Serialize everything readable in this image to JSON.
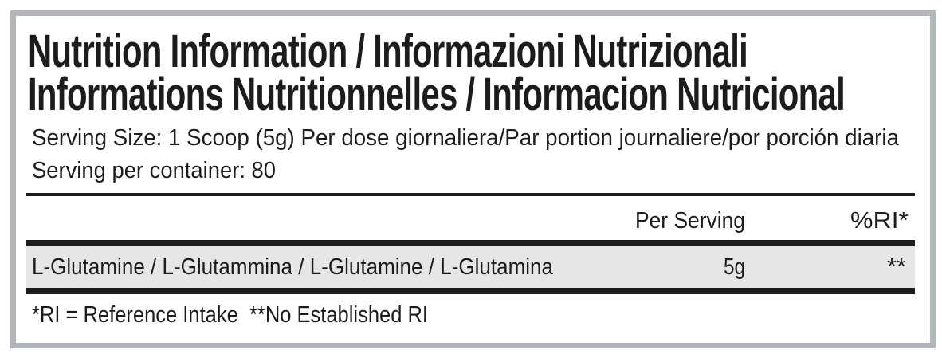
{
  "title": {
    "line1": "Nutrition Information / Informazioni Nutrizionali",
    "line2": "Informations Nutritionnelles / Informacion Nutricional"
  },
  "serving": {
    "size": "Serving Size: 1 Scoop (5g) Per dose giornaliera/Par portion journaliere/por porción diaria",
    "per_container": "Serving per container: 80"
  },
  "table": {
    "headers": [
      "",
      "Per Serving",
      "%RI*"
    ],
    "rows": [
      {
        "name": "L-Glutamine / L-Glutammina / L-Glutamine / L-Glutamina",
        "per_serving": "5g",
        "ri": "**"
      }
    ]
  },
  "footnote": "*RI = Reference Intake  **No Established RI",
  "colors": {
    "border": "#b1b6ba",
    "row_highlight": "#e6e6e8",
    "text": "#1c1c1c"
  }
}
